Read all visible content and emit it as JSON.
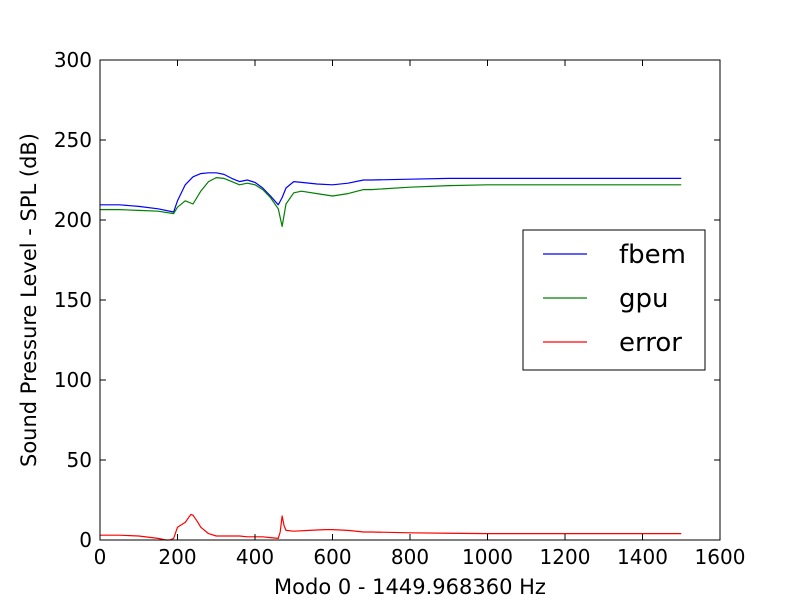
{
  "chart_data": {
    "type": "line",
    "title": "",
    "xlabel": "Modo 0 - 1449.968360 Hz",
    "ylabel": "Sound Pressure Level - SPL (dB)",
    "xlim": [
      0,
      1600
    ],
    "ylim": [
      0,
      300
    ],
    "xticks": [
      0,
      200,
      400,
      600,
      800,
      1000,
      1200,
      1400,
      1600
    ],
    "yticks": [
      0,
      50,
      100,
      150,
      200,
      250,
      300
    ],
    "grid": false,
    "legend_position": "right",
    "series": [
      {
        "name": "fbem",
        "color": "#0000ff",
        "x": [
          0,
          50,
          100,
          150,
          190,
          200,
          220,
          240,
          260,
          280,
          300,
          320,
          340,
          360,
          380,
          400,
          420,
          440,
          460,
          470,
          480,
          500,
          520,
          560,
          600,
          640,
          680,
          700,
          800,
          900,
          1000,
          1100,
          1200,
          1300,
          1400,
          1500
        ],
        "y": [
          209.5,
          209.5,
          208.5,
          207,
          205,
          212,
          222,
          227,
          229,
          229.5,
          229.5,
          228.5,
          226,
          224,
          225,
          223.5,
          220,
          215,
          209.5,
          214,
          220,
          224,
          223.5,
          222.5,
          222,
          223,
          225,
          225,
          225.5,
          226,
          226,
          226,
          226,
          226,
          226,
          226
        ]
      },
      {
        "name": "gpu",
        "color": "#008000",
        "x": [
          0,
          50,
          100,
          150,
          190,
          200,
          220,
          240,
          260,
          280,
          300,
          320,
          340,
          360,
          380,
          400,
          420,
          440,
          460,
          470,
          480,
          500,
          520,
          560,
          600,
          640,
          680,
          700,
          800,
          900,
          1000,
          1100,
          1200,
          1300,
          1400,
          1500
        ],
        "y": [
          206.5,
          206.5,
          206,
          205.5,
          204,
          208,
          212,
          210,
          218,
          224,
          226.5,
          226,
          224,
          222,
          223,
          222,
          219,
          214,
          207,
          196,
          210,
          217,
          218,
          216.5,
          215,
          216.5,
          219,
          219,
          220.5,
          221.5,
          222,
          222,
          222,
          222,
          222,
          222
        ]
      },
      {
        "name": "error",
        "color": "#ff0000",
        "x": [
          0,
          50,
          100,
          150,
          170,
          180,
          190,
          200,
          220,
          230,
          235,
          240,
          250,
          260,
          280,
          300,
          320,
          340,
          360,
          380,
          400,
          420,
          440,
          460,
          465,
          470,
          475,
          480,
          500,
          540,
          580,
          600,
          640,
          680,
          700,
          800,
          900,
          1000,
          1100,
          1200,
          1300,
          1400,
          1500
        ],
        "y": [
          3,
          3,
          2.5,
          1,
          0,
          0,
          1,
          8,
          11,
          14.5,
          16,
          15.5,
          12,
          8,
          4,
          2.5,
          2.5,
          2.5,
          2.5,
          2,
          2,
          2,
          1.5,
          1,
          5,
          15,
          9,
          6,
          5.5,
          6,
          6.5,
          6.5,
          6,
          5,
          5,
          4.5,
          4.2,
          4,
          4,
          4,
          4,
          4,
          4
        ]
      }
    ]
  }
}
